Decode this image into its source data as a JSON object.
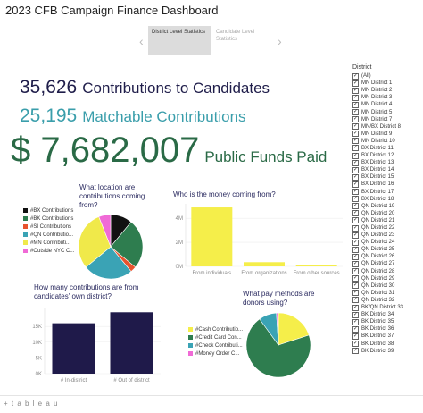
{
  "header": {
    "title": "2023 CFB Campaign Finance Dashboard"
  },
  "story": {
    "prev_icon": "chevron-left-icon",
    "next_icon": "chevron-right-icon",
    "tabs": [
      {
        "label": "District Level Statistics",
        "active": true
      },
      {
        "label": "Candidate Level Statistics",
        "active": false
      }
    ]
  },
  "kpis": {
    "contributions": {
      "value": "35,626",
      "label": "Contributions to Candidates",
      "color": "#1f1d4a"
    },
    "matchable": {
      "value": "25,195",
      "label": "Matchable Contributions",
      "color": "#3a9eab"
    },
    "funds": {
      "value": "$ 7,682,007",
      "label": "Public Funds Paid",
      "color": "#2a6a46"
    }
  },
  "location_chart": {
    "title": "What location are contributions coming from?",
    "legend": [
      {
        "label": "#BX Contributions",
        "color": "#111111"
      },
      {
        "label": "#BK Contributions",
        "color": "#2e7d4f"
      },
      {
        "label": "#SI Contributions",
        "color": "#e8532e"
      },
      {
        "label": "#QN Contributio...",
        "color": "#3aa3b5"
      },
      {
        "label": "#MN Contributi...",
        "color": "#f0e94a"
      },
      {
        "label": "#Outside NYC C...",
        "color": "#f06ad6"
      }
    ]
  },
  "money_chart": {
    "title": "Who is the money coming from?",
    "bar_color": "#f5ee4a",
    "y_ticks": [
      "4M",
      "2M",
      "0M"
    ]
  },
  "own_district_chart": {
    "title": "How many contributions are from candidates' own district?",
    "bar_color": "#1f1a4a",
    "y_ticks": [
      "15K",
      "10K",
      "5K",
      "0K"
    ]
  },
  "pay_chart": {
    "title": "What pay methods are donors using?",
    "legend": [
      {
        "label": "#Cash Contributio...",
        "color": "#f5ee4a"
      },
      {
        "label": "#Credit Card Con...",
        "color": "#2e7d4f"
      },
      {
        "label": "#Check Contributi...",
        "color": "#3aa3b5"
      },
      {
        "label": "#Money Order C...",
        "color": "#f06ad6"
      }
    ]
  },
  "chart_data": [
    {
      "type": "pie",
      "title": "What location are contributions coming from?",
      "labels": [
        "#BX Contributions",
        "#BK Contributions",
        "#SI Contributions",
        "#QN Contributio...",
        "#MN Contributi...",
        "#Outside NYC C..."
      ],
      "values": [
        11,
        25,
        3,
        25,
        30,
        6
      ]
    },
    {
      "type": "bar",
      "title": "Who is the money coming from?",
      "categories": [
        "From individuals",
        "From organizations",
        "From other sources"
      ],
      "values": [
        4.9,
        0.35,
        0.1
      ],
      "ylim": [
        0,
        5.2
      ],
      "y_tick_values": [
        0,
        2,
        4
      ]
    },
    {
      "type": "bar",
      "title": "How many contributions are from candidates' own district?",
      "categories": [
        "# In-district",
        "# Out of district"
      ],
      "values": [
        16000,
        19500
      ],
      "ylim": [
        0,
        21000
      ],
      "y_tick_values": [
        0,
        5000,
        10000,
        15000
      ]
    },
    {
      "type": "pie",
      "title": "What pay methods are donors using?",
      "labels": [
        "#Cash Contributio...",
        "#Credit Card Con...",
        "#Check Contributi...",
        "#Money Order C..."
      ],
      "values": [
        20,
        70,
        9,
        1
      ]
    }
  ],
  "filter": {
    "title": "District",
    "items": [
      "(All)",
      "MN District 1",
      "MN District 2",
      "MN District 3",
      "MN District 4",
      "MN District 5",
      "MN District 7",
      "MN/BX District 8",
      "MN District 9",
      "MN District 10",
      "BX District 11",
      "BX District 12",
      "BX District 13",
      "BX District 14",
      "BX District 15",
      "BX District 16",
      "BX District 17",
      "BX District 18",
      "QN District 19",
      "QN District 20",
      "QN District 21",
      "QN District 22",
      "QN District 23",
      "QN District 24",
      "QN District 25",
      "QN District 26",
      "QN District 27",
      "QN District 28",
      "QN District 29",
      "QN District 30",
      "QN District 31",
      "QN District 32",
      "BK/QN District 33",
      "BK District 34",
      "BK District 35",
      "BK District 36",
      "BK District 37",
      "BK District 38",
      "BK District 39"
    ]
  },
  "footer": {
    "brand": "+ t a b l e a u"
  }
}
